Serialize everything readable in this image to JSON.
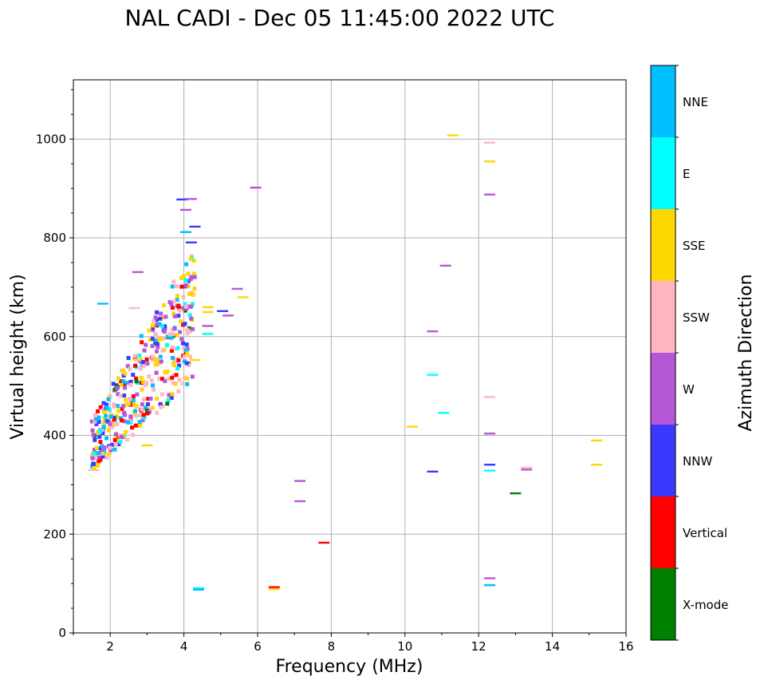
{
  "chart_data": {
    "type": "scatter",
    "title": "NAL CADI - Dec 05 11:45:00 2022 UTC",
    "xlabel": "Frequency (MHz)",
    "ylabel": "Virtual height (km)",
    "xlim": [
      1,
      16
    ],
    "ylim": [
      0,
      1120
    ],
    "xticks": [
      2,
      4,
      6,
      8,
      10,
      12,
      14,
      16
    ],
    "yticks": [
      0,
      200,
      400,
      600,
      800,
      1000
    ],
    "grid": true,
    "colorbar": {
      "label": "Azimuth Direction",
      "categories": [
        {
          "name": "X-mode",
          "color": "#008000"
        },
        {
          "name": "Vertical",
          "color": "#ff0000"
        },
        {
          "name": "NNW",
          "color": "#3a3aff"
        },
        {
          "name": "W",
          "color": "#b657d8"
        },
        {
          "name": "SSW",
          "color": "#ffb6c1"
        },
        {
          "name": "SSE",
          "color": "#ffd700"
        },
        {
          "name": "E",
          "color": "#00ffff"
        },
        {
          "name": "NNE",
          "color": "#00bfff"
        }
      ]
    },
    "echoes": [
      {
        "f": 11.3,
        "h": 1008,
        "c": "SSE"
      },
      {
        "f": 12.3,
        "h": 993,
        "c": "SSW"
      },
      {
        "f": 12.3,
        "h": 955,
        "c": "SSE"
      },
      {
        "f": 12.3,
        "h": 888,
        "c": "W"
      },
      {
        "f": 5.95,
        "h": 902,
        "c": "W"
      },
      {
        "f": 11.1,
        "h": 744,
        "c": "W"
      },
      {
        "f": 10.75,
        "h": 611,
        "c": "W"
      },
      {
        "f": 10.75,
        "h": 523,
        "c": "E"
      },
      {
        "f": 11.05,
        "h": 446,
        "c": "E"
      },
      {
        "f": 12.3,
        "h": 478,
        "c": "SSW"
      },
      {
        "f": 10.2,
        "h": 418,
        "c": "SSE"
      },
      {
        "f": 12.3,
        "h": 404,
        "c": "W"
      },
      {
        "f": 10.75,
        "h": 327,
        "c": "NNW"
      },
      {
        "f": 12.3,
        "h": 341,
        "c": "NNW"
      },
      {
        "f": 12.3,
        "h": 329,
        "c": "E"
      },
      {
        "f": 13.3,
        "h": 335,
        "c": "SSW"
      },
      {
        "f": 13.3,
        "h": 331,
        "c": "W"
      },
      {
        "f": 13.0,
        "h": 283,
        "c": "X-mode"
      },
      {
        "f": 15.2,
        "h": 390,
        "c": "SSE"
      },
      {
        "f": 15.2,
        "h": 341,
        "c": "SSE"
      },
      {
        "f": 12.3,
        "h": 111,
        "c": "W"
      },
      {
        "f": 12.3,
        "h": 97,
        "c": "NNE"
      },
      {
        "f": 7.15,
        "h": 308,
        "c": "W"
      },
      {
        "f": 7.15,
        "h": 267,
        "c": "W"
      },
      {
        "f": 7.8,
        "h": 183,
        "c": "Vertical"
      },
      {
        "f": 6.45,
        "h": 93,
        "c": "Vertical"
      },
      {
        "f": 6.45,
        "h": 89,
        "c": "SSE"
      },
      {
        "f": 4.4,
        "h": 91,
        "c": "E"
      },
      {
        "f": 4.4,
        "h": 88,
        "c": "NNE"
      },
      {
        "f": 5.45,
        "h": 697,
        "c": "W"
      },
      {
        "f": 5.6,
        "h": 680,
        "c": "SSE"
      },
      {
        "f": 5.05,
        "h": 652,
        "c": "NNW"
      },
      {
        "f": 5.2,
        "h": 643,
        "c": "W"
      },
      {
        "f": 4.65,
        "h": 660,
        "c": "SSE"
      },
      {
        "f": 4.65,
        "h": 650,
        "c": "SSE"
      },
      {
        "f": 4.65,
        "h": 622,
        "c": "W"
      },
      {
        "f": 4.65,
        "h": 606,
        "c": "E"
      },
      {
        "f": 4.3,
        "h": 553,
        "c": "SSE"
      },
      {
        "f": 3.95,
        "h": 878,
        "c": "NNW"
      },
      {
        "f": 4.2,
        "h": 879,
        "c": "W"
      },
      {
        "f": 4.05,
        "h": 857,
        "c": "W"
      },
      {
        "f": 4.05,
        "h": 812,
        "c": "NNE"
      },
      {
        "f": 4.3,
        "h": 823,
        "c": "NNW"
      },
      {
        "f": 4.2,
        "h": 791,
        "c": "NNW"
      },
      {
        "f": 1.8,
        "h": 667,
        "c": "NNE"
      },
      {
        "f": 2.75,
        "h": 731,
        "c": "W"
      },
      {
        "f": 2.65,
        "h": 658,
        "c": "SSW"
      },
      {
        "f": 3.0,
        "h": 380,
        "c": "SSE"
      },
      {
        "f": 1.55,
        "h": 330,
        "c": "SSW"
      }
    ],
    "cluster": {
      "f": [
        1.5,
        4.3
      ],
      "h": [
        330,
        780
      ],
      "n": 430
    }
  }
}
